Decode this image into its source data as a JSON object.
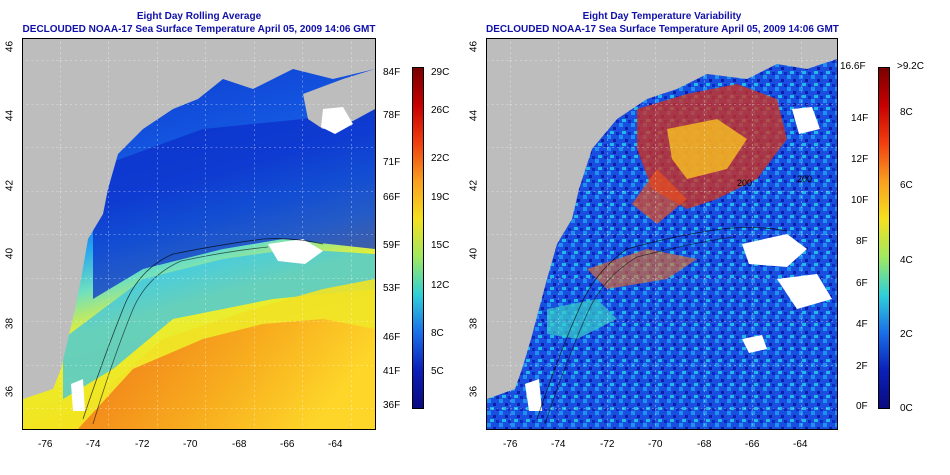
{
  "panels": [
    {
      "title": "Eight Day Rolling Average",
      "subtitle": "DECLOUDED NOAA-17 Sea Surface Temperature April 05, 2009 14:06 GMT"
    },
    {
      "title": "Eight Day Temperature Variability",
      "subtitle": "DECLOUDED NOAA-17 Sea Surface Temperature April 05, 2009 14:06 GMT"
    }
  ],
  "axes": {
    "lon_ticks": [
      "-76",
      "-74",
      "-72",
      "-70",
      "-68",
      "-66",
      "-64"
    ],
    "lat_ticks": [
      "46",
      "44",
      "42",
      "40",
      "38",
      "36"
    ]
  },
  "colorbar_left": {
    "fahrenheit": [
      "84F",
      "78F",
      "71F",
      "66F",
      "59F",
      "53F",
      "46F",
      "41F",
      "36F"
    ],
    "celsius": [
      "29C",
      "26C",
      "22C",
      "19C",
      "15C",
      "12C",
      "8C",
      "5C"
    ]
  },
  "colorbar_right": {
    "fahrenheit": [
      "16.6F",
      "14F",
      "12F",
      "10F",
      "8F",
      "6F",
      "4F",
      "2F",
      "0F"
    ],
    "celsius": [
      ">9.2C",
      "8C",
      "6C",
      "4C",
      "2C",
      "0C"
    ]
  },
  "contour_labels": [
    "200",
    "200"
  ],
  "colors": {
    "title": "#1010a8",
    "land": "#bdbdbd",
    "no_data": "#ffffff"
  }
}
